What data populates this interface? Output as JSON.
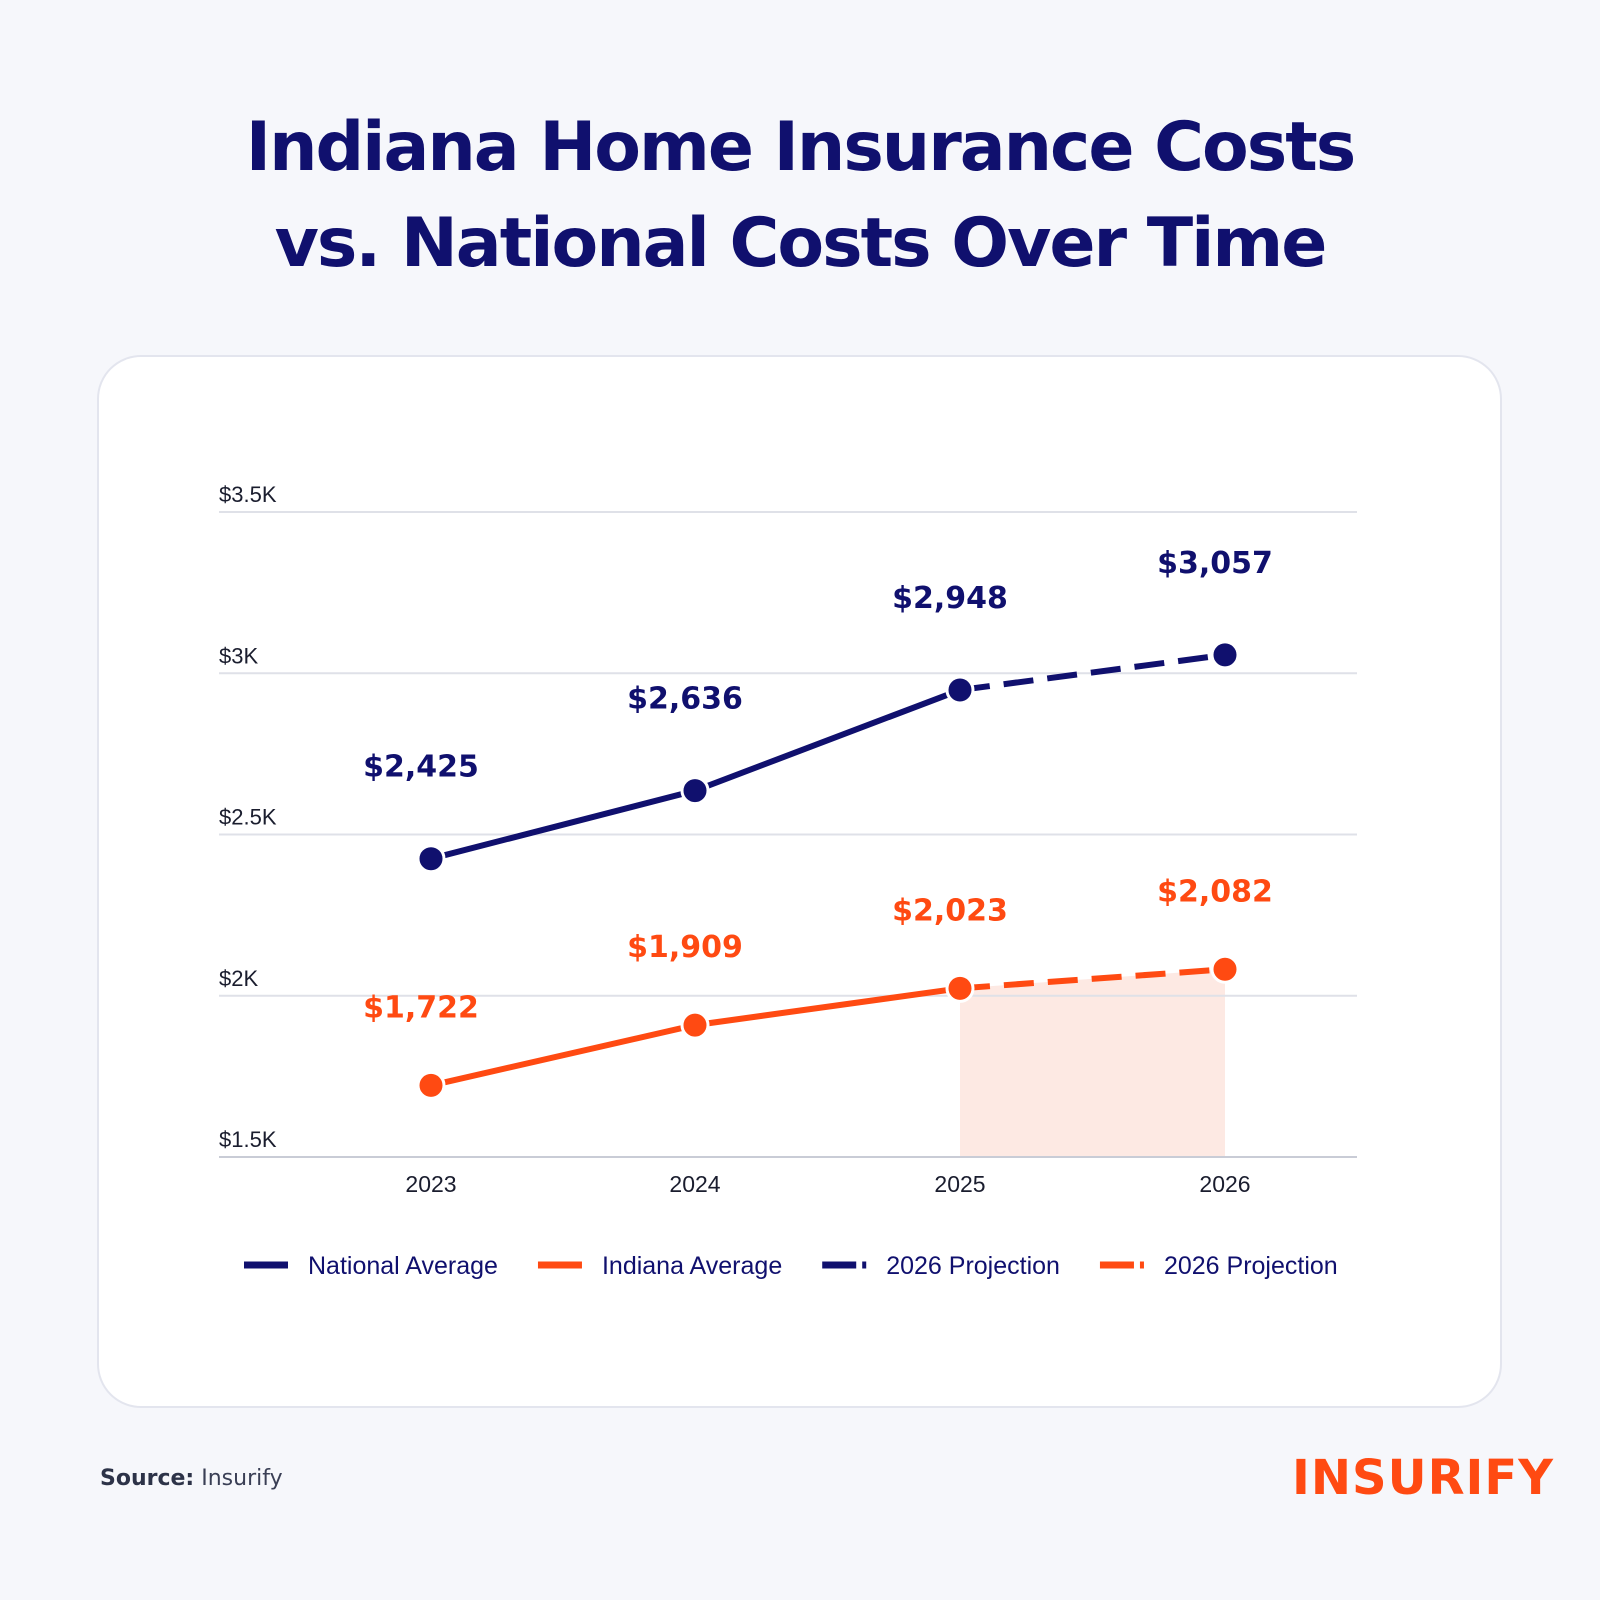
{
  "title_line1": "Indiana Home Insurance Costs",
  "title_line2": "vs. National Costs Over Time",
  "source_label": "Source:",
  "source_value": "Insurify",
  "logo_text": "INSURIFY",
  "colors": {
    "navy": "#10106e",
    "orange": "#ff4a12",
    "shade": "#fde9e3"
  },
  "chart_data": {
    "type": "line",
    "title": "Indiana Home Insurance Costs vs. National Costs Over Time",
    "x": [
      "2023",
      "2024",
      "2025",
      "2026"
    ],
    "ylim": [
      1500,
      3500
    ],
    "yticks": [
      1500,
      2000,
      2500,
      3000,
      3500
    ],
    "ytick_labels": [
      "$1.5K",
      "$2K",
      "$2.5K",
      "$3K",
      "$3.5K"
    ],
    "grid": true,
    "legend_position": "bottom",
    "series": [
      {
        "name": "National Average",
        "color": "#10106e",
        "values": [
          2425,
          2636,
          2948,
          3057
        ],
        "labels": [
          "$2,425",
          "$2,636",
          "$2,948",
          "$3,057"
        ],
        "projection_from_index": 2
      },
      {
        "name": "Indiana Average",
        "color": "#ff4a12",
        "values": [
          1722,
          1909,
          2023,
          2082
        ],
        "labels": [
          "$1,722",
          "$1,909",
          "$2,023",
          "$2,082"
        ],
        "projection_from_index": 2
      }
    ],
    "legend": [
      {
        "label": "National Average",
        "color": "#10106e",
        "style": "solid"
      },
      {
        "label": "Indiana Average",
        "color": "#ff4a12",
        "style": "solid"
      },
      {
        "label": "2026 Projection",
        "color": "#10106e",
        "style": "dashed"
      },
      {
        "label": "2026 Projection",
        "color": "#ff4a12",
        "style": "dashed"
      }
    ]
  }
}
